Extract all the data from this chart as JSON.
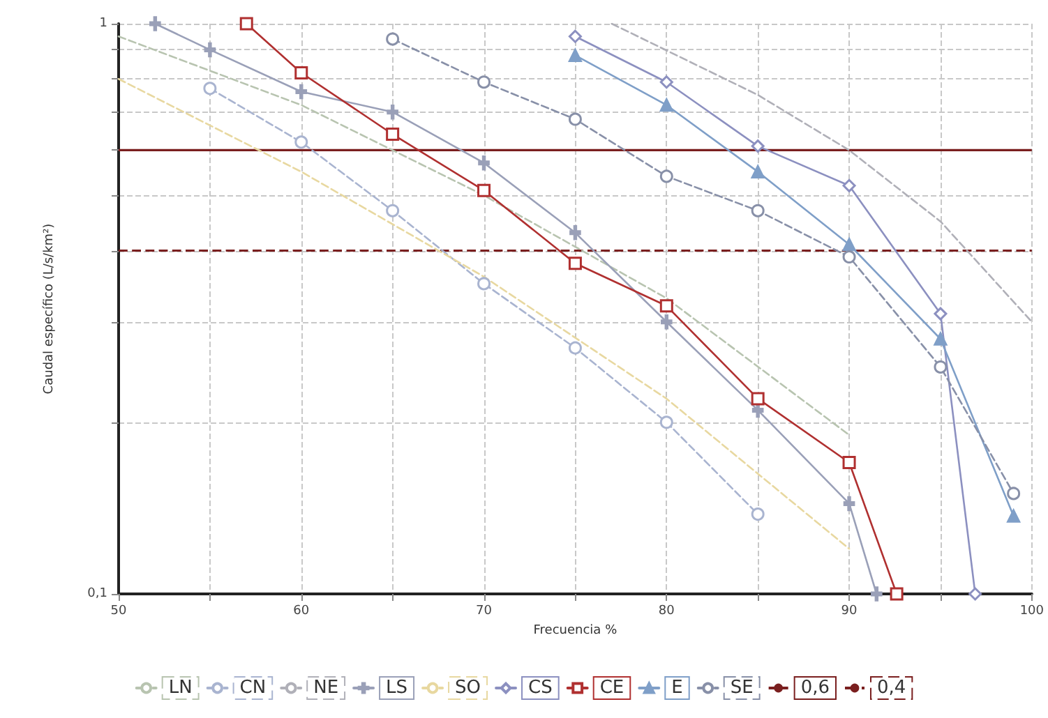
{
  "chart_data": {
    "type": "line",
    "xlabel": "Frecuencia %",
    "ylabel": "Caudal específico (L/s/km²)",
    "log": "y",
    "grid": true,
    "legend": "bottom",
    "xlim": [
      50,
      100
    ],
    "xticks": [
      50,
      {
        "value": 55,
        "label": null
      },
      60,
      {
        "value": 65,
        "label": null
      },
      70,
      {
        "value": 75,
        "label": null
      },
      80,
      {
        "value": 85,
        "label": null
      },
      90,
      {
        "value": 95,
        "label": null
      },
      100
    ],
    "ylim": [
      0.1,
      1
    ],
    "yticks": [
      {
        "value": 0.1,
        "label": "0,1"
      },
      {
        "value": 0.2,
        "label": null
      },
      {
        "value": 0.3,
        "label": null
      },
      {
        "value": 0.4,
        "label": null
      },
      {
        "value": 0.5,
        "label": null
      },
      {
        "value": 0.6,
        "label": null
      },
      {
        "value": 0.7,
        "label": null
      },
      {
        "value": 0.8,
        "label": null
      },
      {
        "value": 0.9,
        "label": null
      },
      1
    ],
    "series": [
      {
        "name": "LN",
        "color": "#b8c4b0",
        "line_style": "dashed",
        "marker": "none",
        "x": [
          50,
          60,
          70,
          80,
          90
        ],
        "values": [
          0.95,
          0.72,
          0.5,
          0.33,
          0.19
        ]
      },
      {
        "name": "CN",
        "color": "#a9b4d0",
        "line_style": "dashed",
        "marker": "circle",
        "x": [
          55,
          60,
          65,
          70,
          75,
          80,
          85
        ],
        "values": [
          0.77,
          0.62,
          0.47,
          0.35,
          0.27,
          0.2,
          0.138
        ]
      },
      {
        "name": "NE",
        "color": "#b0b0b8",
        "line_style": "dashed",
        "marker": "none",
        "x": [
          77,
          85,
          90,
          95,
          100
        ],
        "values": [
          1,
          0.75,
          0.6,
          0.45,
          0.3
        ]
      },
      {
        "name": "LS",
        "color": "#9aa0b8",
        "line_style": "solid",
        "marker": "cross",
        "x": [
          52,
          55,
          60,
          65,
          70,
          75,
          80,
          85,
          90,
          91.5
        ],
        "values": [
          1,
          0.9,
          0.76,
          0.7,
          0.57,
          0.43,
          0.3,
          0.21,
          0.144,
          0.1
        ]
      },
      {
        "name": "SO",
        "color": "#e8d8a0",
        "line_style": "dashed",
        "marker": "none",
        "x": [
          50,
          60,
          70,
          80,
          90
        ],
        "values": [
          0.8,
          0.55,
          0.36,
          0.22,
          0.12
        ]
      },
      {
        "name": "CS",
        "color": "#8c90c0",
        "line_style": "solid",
        "marker": "diamond",
        "x": [
          75,
          80,
          85,
          90,
          95,
          96.9
        ],
        "values": [
          0.95,
          0.79,
          0.61,
          0.52,
          0.31,
          0.1
        ]
      },
      {
        "name": "CE",
        "color": "#b03030",
        "line_style": "solid",
        "marker": "square",
        "x": [
          57,
          60,
          65,
          70,
          75,
          80,
          85,
          90,
          92.6
        ],
        "values": [
          1,
          0.82,
          0.64,
          0.51,
          0.38,
          0.32,
          0.22,
          0.17,
          0.1
        ]
      },
      {
        "name": "E",
        "color": "#7f9fc8",
        "line_style": "solid",
        "marker": "triangle",
        "x": [
          75,
          80,
          85,
          90,
          95,
          99
        ],
        "values": [
          0.88,
          0.72,
          0.55,
          0.41,
          0.28,
          0.137
        ]
      },
      {
        "name": "SE",
        "color": "#8890a8",
        "line_style": "dashed",
        "marker": "circle",
        "x": [
          65,
          70,
          75,
          80,
          85,
          90,
          95,
          99
        ],
        "values": [
          0.94,
          0.79,
          0.68,
          0.54,
          0.47,
          0.39,
          0.25,
          0.15
        ]
      }
    ],
    "ref_lines": [
      {
        "axis": "y",
        "value": 0.6,
        "label": "0,6",
        "color": "#7a1f1f",
        "line_style": "solid"
      },
      {
        "axis": "y",
        "value": 0.4,
        "label": "0,4",
        "color": "#7a1f1f",
        "line_style": "dashed"
      }
    ]
  }
}
